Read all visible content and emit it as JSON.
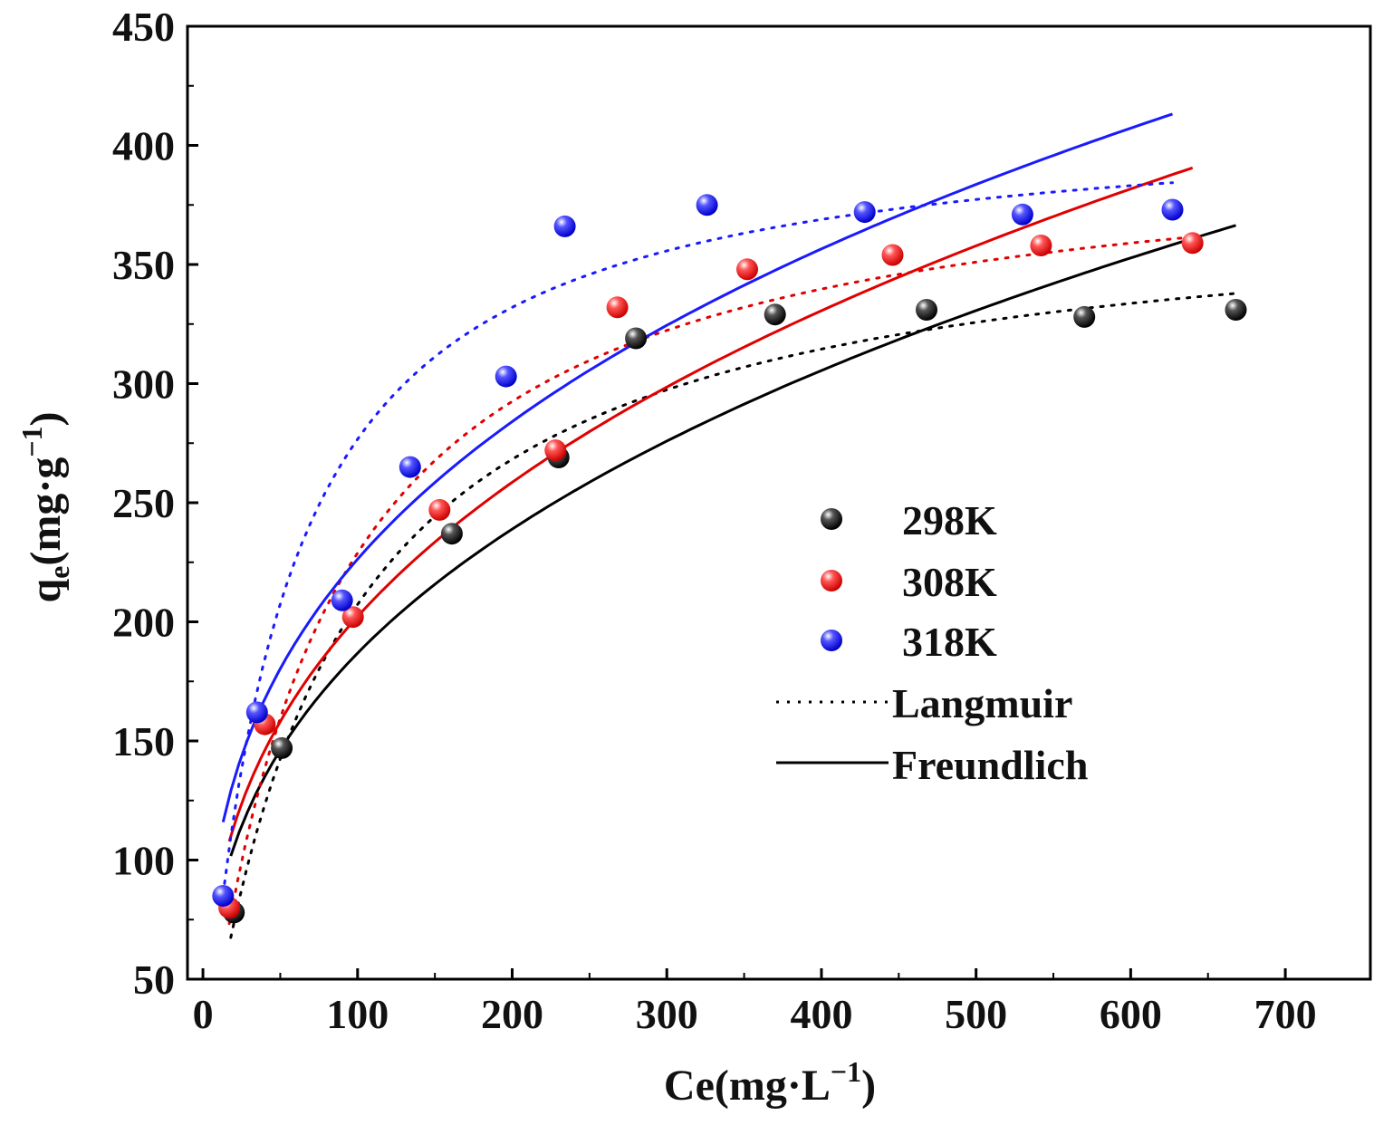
{
  "chart_data": {
    "type": "scatter",
    "title": "",
    "xlabel": "Ce(mg·L−1)",
    "xlabel_parts": {
      "main": "Ce(mg·L",
      "sup": "−1",
      "tail": ")"
    },
    "ylabel": "qe(mg·g−1)",
    "ylabel_parts": {
      "main": "q",
      "sub": "e",
      "mid": "(mg·g",
      "sup": "−1",
      "tail": ")"
    },
    "xlim": [
      -10,
      755
    ],
    "ylim": [
      50,
      450
    ],
    "xticks": [
      0,
      100,
      200,
      300,
      400,
      500,
      600,
      700
    ],
    "yticks": [
      50,
      100,
      150,
      200,
      250,
      300,
      350,
      400,
      450
    ],
    "legend_position": "center-right",
    "series": [
      {
        "name": "298K",
        "color": "#000000",
        "points": [
          [
            20,
            78
          ],
          [
            51,
            147
          ],
          [
            161,
            237
          ],
          [
            230,
            269
          ],
          [
            280,
            319
          ],
          [
            370,
            329
          ],
          [
            468,
            331
          ],
          [
            570,
            328
          ],
          [
            668,
            331
          ]
        ],
        "langmuir": {
          "qmax": 380,
          "KL": 0.012
        },
        "freundlich": {
          "KF": 36.5,
          "n": 2.82
        },
        "curve_x_range": [
          18,
          668
        ]
      },
      {
        "name": "308K",
        "color": "#e00000",
        "points": [
          [
            17,
            80
          ],
          [
            40,
            157
          ],
          [
            97,
            202
          ],
          [
            153,
            247
          ],
          [
            228,
            272
          ],
          [
            268,
            332
          ],
          [
            352,
            348
          ],
          [
            446,
            354
          ],
          [
            542,
            358
          ],
          [
            640,
            359
          ]
        ],
        "langmuir": {
          "qmax": 405,
          "KL": 0.013
        },
        "freundlich": {
          "KF": 39.5,
          "n": 2.82
        },
        "curve_x_range": [
          17,
          640
        ]
      },
      {
        "name": "318K",
        "color": "#1a1aff",
        "points": [
          [
            13,
            85
          ],
          [
            35,
            162
          ],
          [
            90,
            209
          ],
          [
            134,
            265
          ],
          [
            196,
            303
          ],
          [
            234,
            366
          ],
          [
            326,
            375
          ],
          [
            428,
            372
          ],
          [
            530,
            371
          ],
          [
            627,
            373
          ]
        ],
        "langmuir": {
          "qmax": 415,
          "KL": 0.02
        },
        "freundlich": {
          "KF": 50,
          "n": 3.05
        },
        "curve_x_range": [
          13,
          627
        ]
      }
    ],
    "legend": [
      {
        "label": "298K",
        "kind": "marker",
        "color": "#000000"
      },
      {
        "label": "308K",
        "kind": "marker",
        "color": "#e00000"
      },
      {
        "label": "318K",
        "kind": "marker",
        "color": "#1a1aff"
      },
      {
        "label": "Langmuir",
        "kind": "dotted-line",
        "color": "#000000"
      },
      {
        "label": "Freundlich",
        "kind": "solid-line",
        "color": "#000000"
      }
    ]
  }
}
